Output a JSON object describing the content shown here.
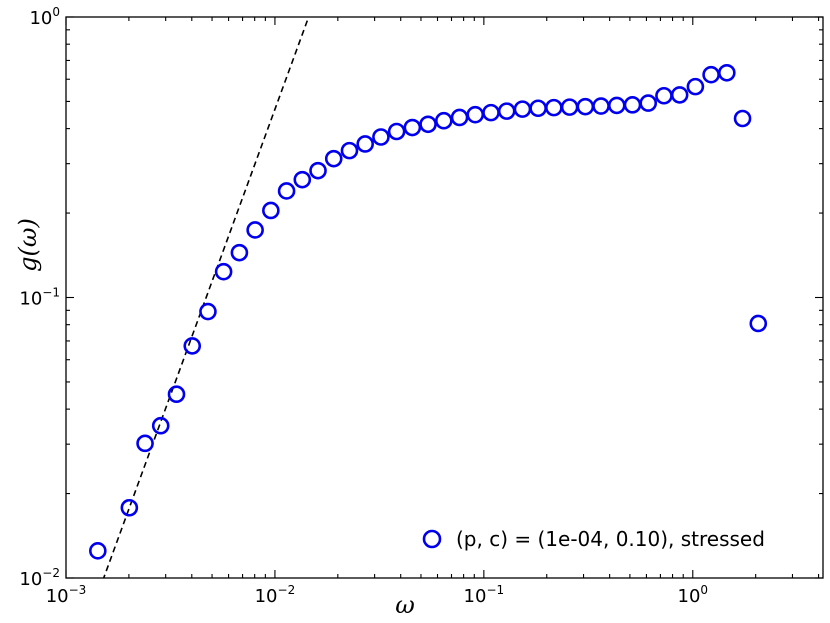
{
  "chart_data": {
    "type": "scatter",
    "xlabel": "ω",
    "ylabel": "g(ω)",
    "xscale": "log",
    "yscale": "log",
    "xlim": [
      0.001,
      4.2
    ],
    "ylim": [
      0.01,
      1
    ],
    "x_ticks": [
      {
        "value": 0.001,
        "base": "10",
        "exp": "−3"
      },
      {
        "value": 0.01,
        "base": "10",
        "exp": "−2"
      },
      {
        "value": 0.1,
        "base": "10",
        "exp": "−1"
      },
      {
        "value": 1,
        "base": "10",
        "exp": "0"
      }
    ],
    "y_ticks": [
      {
        "value": 0.01,
        "base": "10",
        "exp": "−2"
      },
      {
        "value": 0.1,
        "base": "10",
        "exp": "−1"
      },
      {
        "value": 1,
        "base": "10",
        "exp": "0"
      }
    ],
    "grid": false,
    "legend_position": "bottom-right",
    "colors": {
      "series": "#0000ee",
      "fit_line": "#000000"
    },
    "series": [
      {
        "name": "(p, c) = (1e-04, 0.10), stressed",
        "marker": "open-circle",
        "x": [
          0.00142,
          0.00201,
          0.00239,
          0.00284,
          0.00338,
          0.00402,
          0.00478,
          0.00568,
          0.00676,
          0.00804,
          0.00956,
          0.01137,
          0.01352,
          0.01608,
          0.01912,
          0.02274,
          0.02704,
          0.03216,
          0.03824,
          0.04548,
          0.05408,
          0.06432,
          0.0765,
          0.09096,
          0.10818,
          0.12864,
          0.153,
          0.1819,
          0.2163,
          0.2573,
          0.306,
          0.3638,
          0.4327,
          0.5145,
          0.612,
          0.7277,
          0.8654,
          1.0291,
          1.2236,
          1.4552,
          1.7305,
          2.058
        ],
        "y": [
          0.0125,
          0.0178,
          0.0302,
          0.0349,
          0.0452,
          0.0672,
          0.0891,
          0.1236,
          0.1445,
          0.1741,
          0.2043,
          0.2398,
          0.2631,
          0.2833,
          0.3126,
          0.3339,
          0.3526,
          0.3734,
          0.3907,
          0.4036,
          0.4145,
          0.4268,
          0.4383,
          0.4485,
          0.4561,
          0.4618,
          0.4694,
          0.4728,
          0.4752,
          0.4772,
          0.4791,
          0.4814,
          0.4839,
          0.4862,
          0.4932,
          0.5239,
          0.5275,
          0.5646,
          0.6227,
          0.6327,
          0.4347,
          0.0808
        ]
      }
    ],
    "reference_line": {
      "style": "dashed",
      "x": [
        0.0015,
        0.0145
      ],
      "y": [
        0.0098,
        1.0
      ]
    }
  }
}
